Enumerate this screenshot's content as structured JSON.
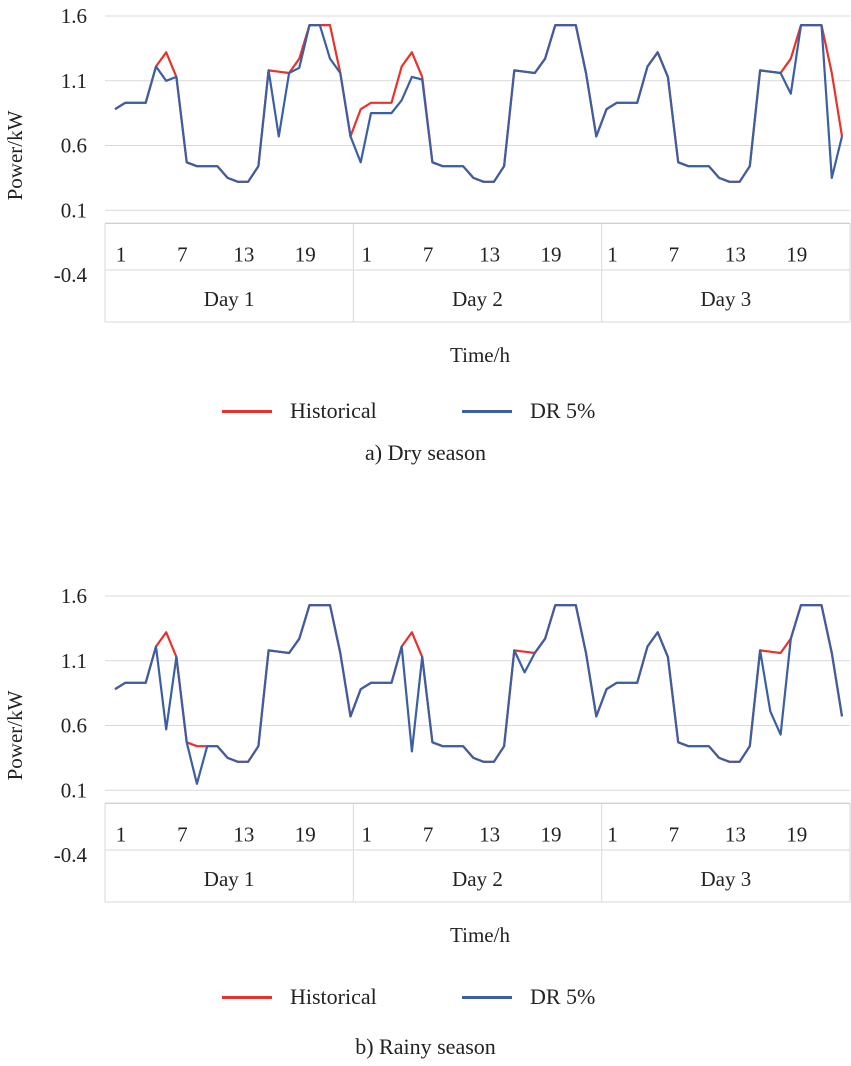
{
  "chart_data": [
    {
      "type": "line",
      "title": "a) Dry season",
      "xlabel": "Time/h",
      "ylabel": "Power/kW",
      "ylim": [
        -0.4,
        1.6
      ],
      "yticks": [
        "1.6",
        "1.1",
        "0.6",
        "0.1",
        "-0.4"
      ],
      "ytick_values": [
        1.6,
        1.1,
        0.6,
        0.1,
        -0.4
      ],
      "hour_ticks": [
        "1",
        "7",
        "13",
        "19"
      ],
      "days": [
        "Day 1",
        "Day 2",
        "Day 3"
      ],
      "x": "hours 1-24 for each of 3 days (72 points)",
      "series": [
        {
          "name": "Historical",
          "color": "#e8322b",
          "values": [
            0.88,
            0.93,
            0.93,
            0.93,
            1.21,
            1.32,
            1.13,
            0.47,
            0.44,
            0.44,
            0.44,
            0.35,
            0.32,
            0.32,
            0.44,
            1.18,
            1.17,
            1.16,
            1.27,
            1.53,
            1.53,
            1.53,
            1.16,
            0.67,
            0.88,
            0.93,
            0.93,
            0.93,
            1.21,
            1.32,
            1.13,
            0.47,
            0.44,
            0.44,
            0.44,
            0.35,
            0.32,
            0.32,
            0.44,
            1.18,
            1.17,
            1.16,
            1.27,
            1.53,
            1.53,
            1.53,
            1.16,
            0.67,
            0.88,
            0.93,
            0.93,
            0.93,
            1.21,
            1.32,
            1.13,
            0.47,
            0.44,
            0.44,
            0.44,
            0.35,
            0.32,
            0.32,
            0.44,
            1.18,
            1.17,
            1.16,
            1.27,
            1.53,
            1.53,
            1.53,
            1.16,
            0.67
          ]
        },
        {
          "name": "DR 5%",
          "color": "#3b5fa3",
          "values": [
            0.88,
            0.93,
            0.93,
            0.93,
            1.21,
            1.1,
            1.13,
            0.47,
            0.44,
            0.44,
            0.44,
            0.35,
            0.32,
            0.32,
            0.44,
            1.18,
            0.67,
            1.16,
            1.2,
            1.53,
            1.53,
            1.27,
            1.16,
            0.67,
            0.47,
            0.85,
            0.85,
            0.85,
            0.95,
            1.13,
            1.11,
            0.47,
            0.44,
            0.44,
            0.44,
            0.35,
            0.32,
            0.32,
            0.44,
            1.18,
            1.17,
            1.16,
            1.27,
            1.53,
            1.53,
            1.53,
            1.16,
            0.67,
            0.88,
            0.93,
            0.93,
            0.93,
            1.21,
            1.32,
            1.13,
            0.47,
            0.44,
            0.44,
            0.44,
            0.35,
            0.32,
            0.32,
            0.44,
            1.18,
            1.17,
            1.16,
            1.0,
            1.53,
            1.53,
            1.53,
            0.35,
            0.67
          ]
        }
      ]
    },
    {
      "type": "line",
      "title": "b) Rainy season",
      "xlabel": "Time/h",
      "ylabel": "Power/kW",
      "ylim": [
        -0.4,
        1.6
      ],
      "yticks": [
        "1.6",
        "1.1",
        "0.6",
        "0.1",
        "-0.4"
      ],
      "ytick_values": [
        1.6,
        1.1,
        0.6,
        0.1,
        -0.4
      ],
      "hour_ticks": [
        "1",
        "7",
        "13",
        "19"
      ],
      "days": [
        "Day 1",
        "Day 2",
        "Day 3"
      ],
      "x": "hours 1-24 for each of 3 days (72 points)",
      "series": [
        {
          "name": "Historical",
          "color": "#e8322b",
          "values": [
            0.88,
            0.93,
            0.93,
            0.93,
            1.21,
            1.32,
            1.13,
            0.47,
            0.44,
            0.44,
            0.44,
            0.35,
            0.32,
            0.32,
            0.44,
            1.18,
            1.17,
            1.16,
            1.27,
            1.53,
            1.53,
            1.53,
            1.16,
            0.67,
            0.88,
            0.93,
            0.93,
            0.93,
            1.21,
            1.32,
            1.13,
            0.47,
            0.44,
            0.44,
            0.44,
            0.35,
            0.32,
            0.32,
            0.44,
            1.18,
            1.17,
            1.16,
            1.27,
            1.53,
            1.53,
            1.53,
            1.16,
            0.67,
            0.88,
            0.93,
            0.93,
            0.93,
            1.21,
            1.32,
            1.13,
            0.47,
            0.44,
            0.44,
            0.44,
            0.35,
            0.32,
            0.32,
            0.44,
            1.18,
            1.17,
            1.16,
            1.27,
            1.53,
            1.53,
            1.53,
            1.16,
            0.67
          ]
        },
        {
          "name": "DR 5%",
          "color": "#3b5fa3",
          "values": [
            0.88,
            0.93,
            0.93,
            0.93,
            1.21,
            0.57,
            1.13,
            0.47,
            0.15,
            0.44,
            0.44,
            0.35,
            0.32,
            0.32,
            0.44,
            1.18,
            1.17,
            1.16,
            1.27,
            1.53,
            1.53,
            1.53,
            1.16,
            0.67,
            0.88,
            0.93,
            0.93,
            0.93,
            1.21,
            0.4,
            1.13,
            0.47,
            0.44,
            0.44,
            0.44,
            0.35,
            0.32,
            0.32,
            0.44,
            1.18,
            1.01,
            1.16,
            1.27,
            1.53,
            1.53,
            1.53,
            1.16,
            0.67,
            0.88,
            0.93,
            0.93,
            0.93,
            1.21,
            1.32,
            1.13,
            0.47,
            0.44,
            0.44,
            0.44,
            0.35,
            0.32,
            0.32,
            0.44,
            1.18,
            0.71,
            0.53,
            1.27,
            1.53,
            1.53,
            1.53,
            1.16,
            0.67
          ]
        }
      ]
    }
  ]
}
